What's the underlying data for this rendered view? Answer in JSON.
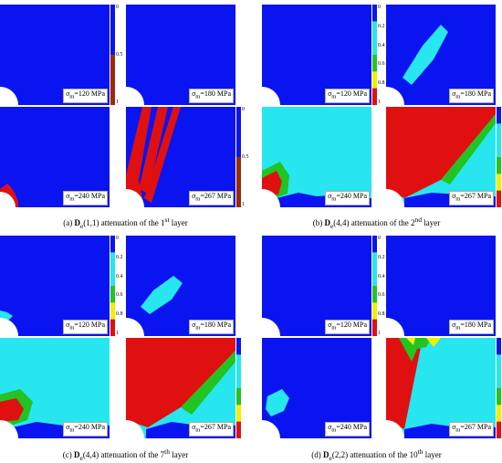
{
  "colors": {
    "blue": "#0a14f0",
    "cyan": "#27e6f0",
    "green": "#22c422",
    "yellow": "#f0f000",
    "red": "#e01010",
    "white": "#ffffff"
  },
  "panels": [
    {
      "caption_prefix": "(a) ",
      "caption_symbol": "D",
      "caption_sub": "e",
      "caption_index": "(1,1) attenuation of the 1",
      "caption_sup": "st",
      "caption_suffix": " layer",
      "colorbar_type": "binary",
      "colorbar_ticks": [
        "0",
        "0.5",
        "1"
      ],
      "cells": [
        {
          "label_sigma": "σ",
          "label_sub": "m",
          "label_value": "=120 MPa"
        },
        {
          "label_sigma": "σ",
          "label_sub": "m",
          "label_value": "=180 MPa"
        },
        {
          "label_sigma": "σ",
          "label_sub": "m",
          "label_value": "=240 MPa"
        },
        {
          "label_sigma": "σ",
          "label_sub": "m",
          "label_value": "=267 MPa"
        }
      ]
    },
    {
      "caption_prefix": "(b) ",
      "caption_symbol": "D",
      "caption_sub": "e",
      "caption_index": "(4,4) attenuation of the 2",
      "caption_sup": "nd",
      "caption_suffix": " layer",
      "colorbar_type": "multi",
      "colorbar_ticks": [
        "0",
        "0.2",
        "0.4",
        "0.6",
        "0.8",
        "1"
      ],
      "cells": [
        {
          "label_sigma": "σ",
          "label_sub": "m",
          "label_value": "=120 MPa"
        },
        {
          "label_sigma": "σ",
          "label_sub": "m",
          "label_value": "=180 MPa"
        },
        {
          "label_sigma": "σ",
          "label_sub": "m",
          "label_value": "=240 MPa"
        },
        {
          "label_sigma": "σ",
          "label_sub": "m",
          "label_value": "=267 MPa"
        }
      ]
    },
    {
      "caption_prefix": "(c) ",
      "caption_symbol": "D",
      "caption_sub": "e",
      "caption_index": "(4,4) attenuation of the 7",
      "caption_sup": "th",
      "caption_suffix": " layer",
      "colorbar_type": "multi",
      "colorbar_ticks": [
        "0",
        "0.2",
        "0.4",
        "0.6",
        "0.8",
        "1"
      ],
      "cells": [
        {
          "label_sigma": "σ",
          "label_sub": "m",
          "label_value": "=120 MPa"
        },
        {
          "label_sigma": "σ",
          "label_sub": "m",
          "label_value": "=180 MPa"
        },
        {
          "label_sigma": "σ",
          "label_sub": "m",
          "label_value": "=240 MPa"
        },
        {
          "label_sigma": "σ",
          "label_sub": "m",
          "label_value": "=267 MPa"
        }
      ]
    },
    {
      "caption_prefix": "(d) ",
      "caption_symbol": "D",
      "caption_sub": "e",
      "caption_index": "(2,2) attenuation of the 10",
      "caption_sup": "th",
      "caption_suffix": " layer",
      "colorbar_type": "multi",
      "colorbar_ticks": [
        "0",
        "0.2",
        "0.4",
        "0.6",
        "0.8",
        "1"
      ],
      "cells": [
        {
          "label_sigma": "σ",
          "label_sub": "m",
          "label_value": "=120 MPa"
        },
        {
          "label_sigma": "σ",
          "label_sub": "m",
          "label_value": "=180 MPa"
        },
        {
          "label_sigma": "σ",
          "label_sub": "m",
          "label_value": "=240 MPa"
        },
        {
          "label_sigma": "σ",
          "label_sub": "m",
          "label_value": "=267 MPa"
        }
      ]
    }
  ]
}
